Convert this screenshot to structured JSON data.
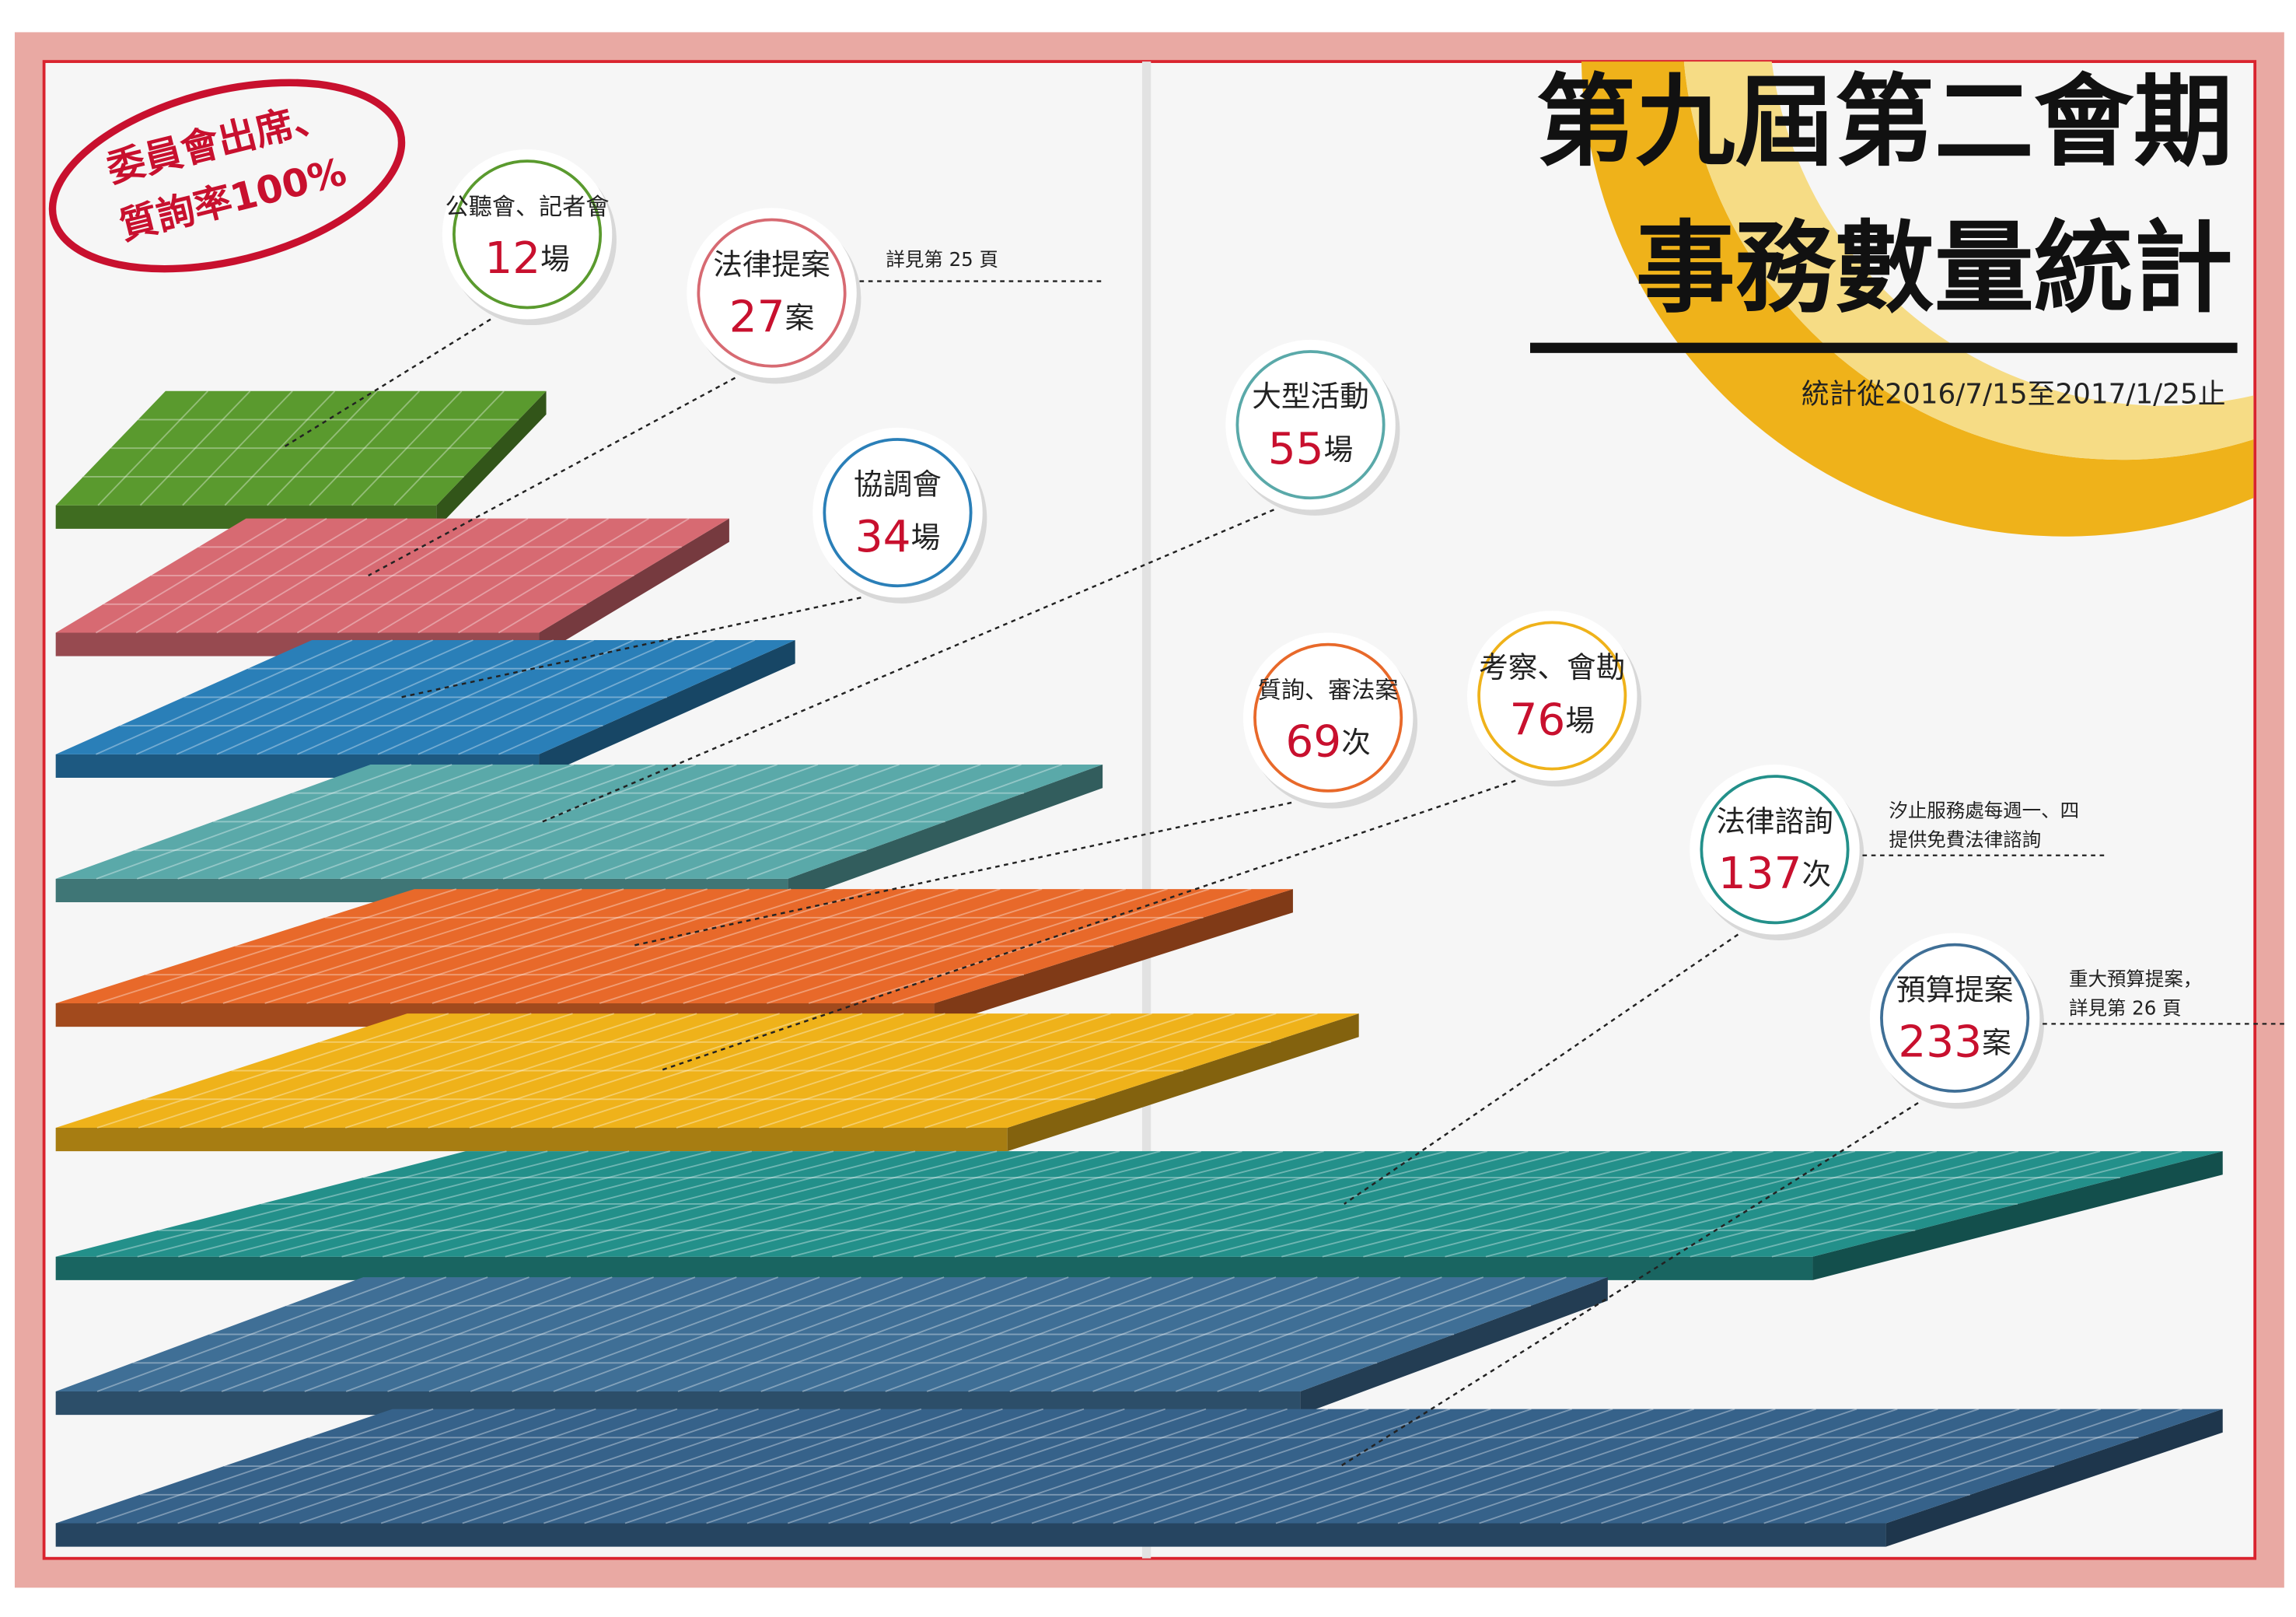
{
  "header": {
    "title_lines": [
      "第九屆第二會期",
      "事務數量統計"
    ],
    "period": "統計從2016/7/15至2017/1/25止"
  },
  "stamp": {
    "lines": [
      "委員會出席、",
      "質詢率100%"
    ]
  },
  "items": [
    {
      "label": "公聽會、記者會",
      "value": 12,
      "unit": "場",
      "color": "#5a9a2e"
    },
    {
      "label": "法律提案",
      "value": 27,
      "unit": "案",
      "color": "#d76a72",
      "note": [
        "詳見第 25 頁"
      ]
    },
    {
      "label": "協調會",
      "value": 34,
      "unit": "場",
      "color": "#2a7fb8"
    },
    {
      "label": "大型活動",
      "value": 55,
      "unit": "場",
      "color": "#5aa9a9"
    },
    {
      "label": "質詢、審法案",
      "value": 69,
      "unit": "次",
      "color": "#e8692a"
    },
    {
      "label": "考察、會勘",
      "value": 76,
      "unit": "場",
      "color": "#efb21a"
    },
    {
      "label": "法律諮詢",
      "value": 137,
      "unit": "次",
      "color": "#23908a",
      "note": [
        "汐止服務處每週一、四",
        "提供免費法律諮詢"
      ]
    },
    {
      "label": "預算提案",
      "value": 233,
      "unit": "案",
      "color": "#3f6f96",
      "note": [
        "重大預算提案，",
        "詳見第 26 頁"
      ]
    }
  ]
}
